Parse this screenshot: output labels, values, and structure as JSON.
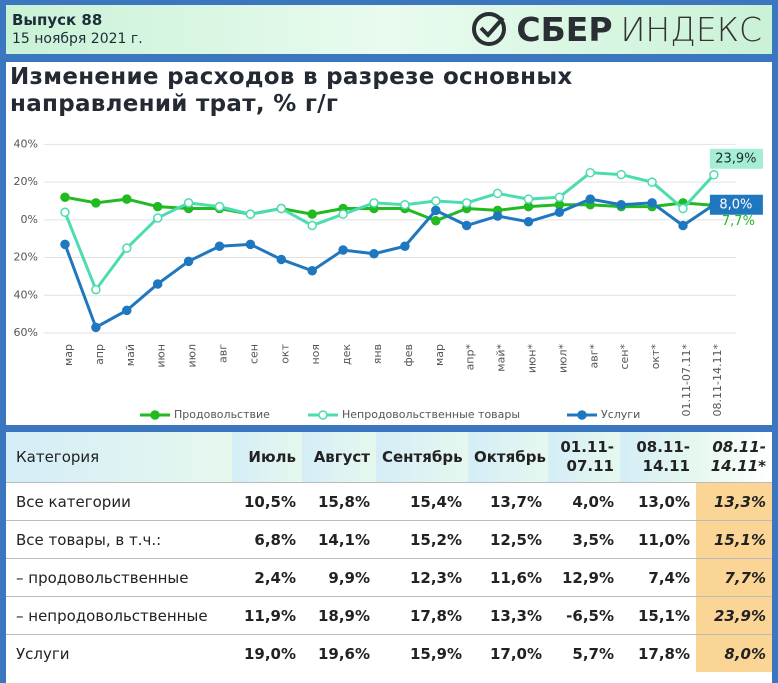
{
  "header": {
    "issue": "Выпуск 88",
    "date": "15 ноября 2021 г.",
    "brand_bold": "СБЕР",
    "brand_light": "ИНДЕКС"
  },
  "chart_data": {
    "type": "line",
    "title": "Изменение расходов в разрезе основных направлений трат, % г/г",
    "categories": [
      "мар",
      "апр",
      "май",
      "июн",
      "июл",
      "авг",
      "сен",
      "окт",
      "ноя",
      "дек",
      "янв",
      "фев",
      "мар",
      "апр*",
      "май*",
      "июн*",
      "июл*",
      "авг*",
      "сен*",
      "окт*",
      "01.11-07.11*",
      "08.11-14.11*"
    ],
    "series": [
      {
        "name": "Продовольствие",
        "color": "#22b922",
        "marker": "filled",
        "values": [
          12,
          9,
          11,
          7,
          6,
          6,
          3,
          6,
          3,
          6,
          6,
          6,
          -0.5,
          6,
          5,
          7,
          8,
          8,
          7,
          7,
          9,
          7.7
        ],
        "value_labels": [
          null,
          null,
          null,
          null,
          null,
          null,
          null,
          null,
          null,
          null,
          null,
          null,
          null,
          null,
          null,
          null,
          null,
          null,
          null,
          null,
          null,
          "7,7%"
        ]
      },
      {
        "name": "Непродовольственные товары",
        "color": "#4ddcb0",
        "marker": "hollow",
        "values": [
          4,
          -37,
          -15,
          1,
          9,
          7,
          3,
          6,
          -3,
          3,
          9,
          8,
          10,
          9,
          14,
          11,
          12,
          25,
          24,
          20,
          6,
          23.9
        ],
        "value_labels": [
          null,
          null,
          null,
          null,
          null,
          null,
          null,
          null,
          null,
          null,
          null,
          null,
          null,
          null,
          null,
          null,
          null,
          null,
          null,
          null,
          null,
          "23,9%"
        ]
      },
      {
        "name": "Услуги",
        "color": "#1f78bf",
        "marker": "filled",
        "values": [
          -13,
          -57,
          -48,
          -34,
          -22,
          -14,
          -13,
          -21,
          -27,
          -16,
          -18,
          -14,
          5,
          -3,
          2,
          -1,
          4,
          11,
          8,
          9,
          -3,
          8.0
        ],
        "value_labels": [
          null,
          null,
          null,
          null,
          null,
          null,
          null,
          null,
          null,
          null,
          null,
          null,
          null,
          null,
          null,
          null,
          null,
          null,
          null,
          null,
          null,
          "8,0%"
        ]
      }
    ],
    "ylim": [
      -60,
      40
    ],
    "yticks": [
      {
        "value": 40,
        "label": "40%"
      },
      {
        "value": 20,
        "label": "20%"
      },
      {
        "value": 0,
        "label": "0%"
      },
      {
        "value": -20,
        "label": "20%"
      },
      {
        "value": -40,
        "label": "40%"
      },
      {
        "value": -60,
        "label": "60%"
      }
    ],
    "grid": true,
    "legend": "bottom"
  },
  "table": {
    "columns": [
      "Категория",
      "Июль",
      "Август",
      "Сентябрь",
      "Октябрь",
      "01.11-07.11",
      "08.11-14.11",
      "08.11-14.11*"
    ],
    "rows": [
      [
        "Все категории",
        "10,5%",
        "15,8%",
        "15,4%",
        "13,7%",
        "4,0%",
        "13,0%",
        "13,3%"
      ],
      [
        "Все товары, в т.ч.:",
        "6,8%",
        "14,1%",
        "15,2%",
        "12,5%",
        "3,5%",
        "11,0%",
        "15,1%"
      ],
      [
        "– продовольственные",
        "2,4%",
        "9,9%",
        "12,3%",
        "11,6%",
        "12,9%",
        "7,4%",
        "7,7%"
      ],
      [
        "– непродовольственные",
        "11,9%",
        "18,9%",
        "17,8%",
        "13,3%",
        "-6,5%",
        "15,1%",
        "23,9%"
      ],
      [
        "Услуги",
        "19,0%",
        "19,6%",
        "15,9%",
        "17,0%",
        "5,7%",
        "17,8%",
        "8,0%"
      ]
    ]
  }
}
